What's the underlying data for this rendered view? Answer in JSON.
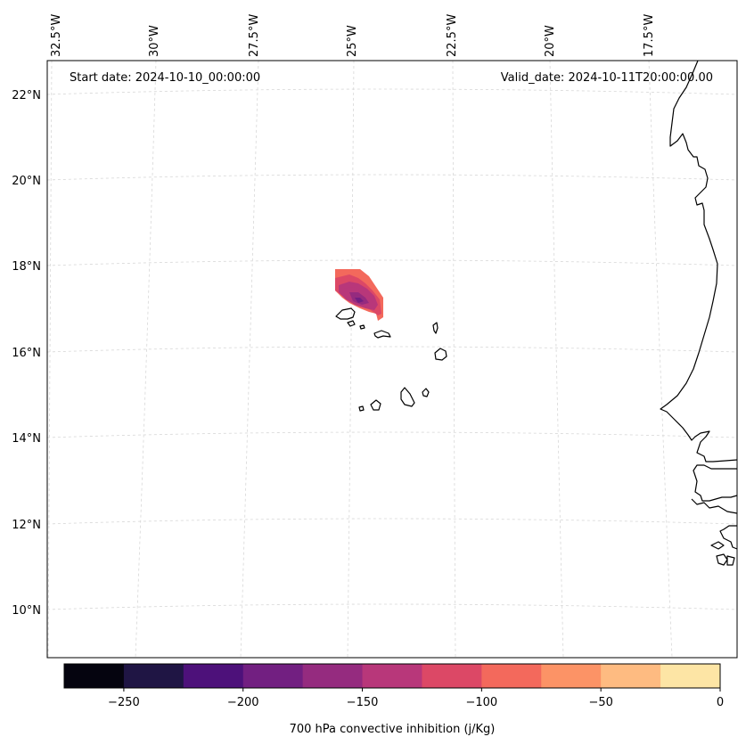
{
  "map": {
    "start_label": "Start date: 2024-10-10_00:00:00",
    "valid_label": "Valid_date: 2024-10-11T20:00:00.00",
    "longitude_labels": [
      "32.5°W",
      "30°W",
      "27.5°W",
      "25°W",
      "22.5°W",
      "20°W",
      "17.5°W"
    ],
    "latitude_labels": [
      "22°N",
      "20°N",
      "18°N",
      "16°N",
      "14°N",
      "12°N",
      "10°N"
    ],
    "region_features": [
      "Cape Verde Islands",
      "West African coastline (Mauritania, Senegal, Gambia, Guinea-Bissau)"
    ]
  },
  "field": {
    "variable": "700 hPa convective inhibition",
    "units": "j/Kg",
    "cells_cin": [
      -90,
      -110,
      -130,
      -140,
      -160,
      -175,
      -185,
      -190,
      -150,
      -120
    ]
  },
  "colorbar": {
    "label": "700 hPa convective inhibition (j/Kg)",
    "levels": [
      -275,
      -250,
      -225,
      -200,
      -175,
      -150,
      -125,
      -100,
      -75,
      -50,
      -25,
      0
    ],
    "tick_values": [
      -250,
      -200,
      -150,
      -100,
      -50,
      0
    ],
    "tick_labels": [
      "−250",
      "−200",
      "−150",
      "−100",
      "−50",
      "0"
    ],
    "colors": [
      "#05040f",
      "#1f1544",
      "#4d117a",
      "#721f81",
      "#952b7f",
      "#b8377a",
      "#dc4866",
      "#f3695c",
      "#fc9366",
      "#febb81",
      "#fde5a5"
    ]
  }
}
